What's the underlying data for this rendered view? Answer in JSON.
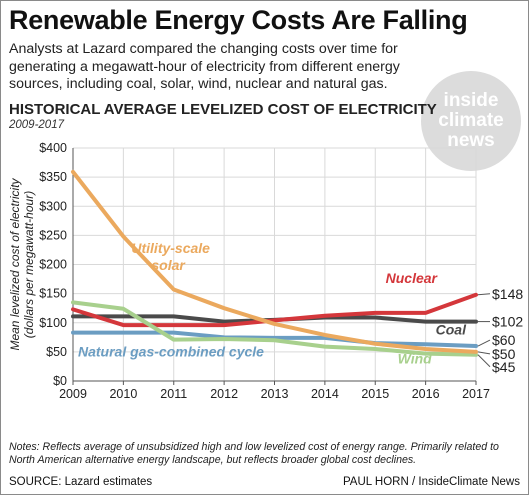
{
  "header": {
    "title": "Renewable Energy Costs Are Falling",
    "subtitle": "Analysts at Lazard compared the changing costs over time for generating a megawatt-hour of electricity from different energy sources, including coal, solar, wind, nuclear and natural gas."
  },
  "logo": {
    "line1": "inside",
    "line2": "climate",
    "line3": "news"
  },
  "footer": {
    "notes": "Notes: Reflects average of unsubsidized high and low levelized cost of energy range. Primarily related to North American alternative energy landscape, but reflects broader global cost declines.",
    "source": "SOURCE: Lazard estimates",
    "credit": "PAUL HORN / InsideClimate News"
  },
  "chart_data": {
    "type": "line",
    "title": "HISTORICAL AVERAGE LEVELIZED COST OF ELECTRICITY",
    "subtitle": "2009-2017",
    "ylabel_line1": "Mean levelized cost of electricity",
    "ylabel_line2": "(dollars per megawatt-hour)",
    "ylim": [
      0,
      400
    ],
    "y_ticks": [
      {
        "value": 0,
        "label": "$0"
      },
      {
        "value": 50,
        "label": "$50"
      },
      {
        "value": 100,
        "label": "$100"
      },
      {
        "value": 150,
        "label": "$150"
      },
      {
        "value": 200,
        "label": "$200"
      },
      {
        "value": 250,
        "label": "$250"
      },
      {
        "value": 300,
        "label": "$300"
      },
      {
        "value": 350,
        "label": "$350"
      },
      {
        "value": 400,
        "label": "$400"
      }
    ],
    "x": [
      2009,
      2010,
      2011,
      2012,
      2013,
      2014,
      2015,
      2016,
      2017
    ],
    "x_labels": [
      "2009",
      "2010",
      "2011",
      "2012",
      "2013",
      "2014",
      "2015",
      "2016",
      "2017"
    ],
    "grid": true,
    "series": [
      {
        "name": "Natural gas-combined cycle",
        "color": "#6b9dc2",
        "label_text": "Natural gas-combined cycle",
        "end_label": "$60",
        "values": [
          83,
          83,
          83,
          75,
          74,
          74,
          65,
          63,
          60
        ]
      },
      {
        "name": "Coal",
        "color": "#4a4a4a",
        "label_text": "Coal",
        "end_label": "$102",
        "values": [
          111,
          111,
          111,
          102,
          105,
          109,
          109,
          102,
          102
        ]
      },
      {
        "name": "Nuclear",
        "color": "#d4373b",
        "label_text": "Nuclear",
        "end_label": "$148",
        "values": [
          123,
          96,
          96,
          96,
          104,
          112,
          117,
          117,
          148
        ]
      },
      {
        "name": "Wind",
        "color": "#a8d08d",
        "label_text": "Wind",
        "end_label": "$45",
        "values": [
          135,
          124,
          71,
          72,
          70,
          59,
          55,
          47,
          45
        ]
      },
      {
        "name": "Utility-scale solar",
        "color": "#eba95e",
        "label_text_line1": "Utility-scale",
        "label_text_line2": "solar",
        "end_label": "$50",
        "values": [
          359,
          248,
          157,
          125,
          98,
          79,
          64,
          55,
          50
        ]
      }
    ]
  }
}
